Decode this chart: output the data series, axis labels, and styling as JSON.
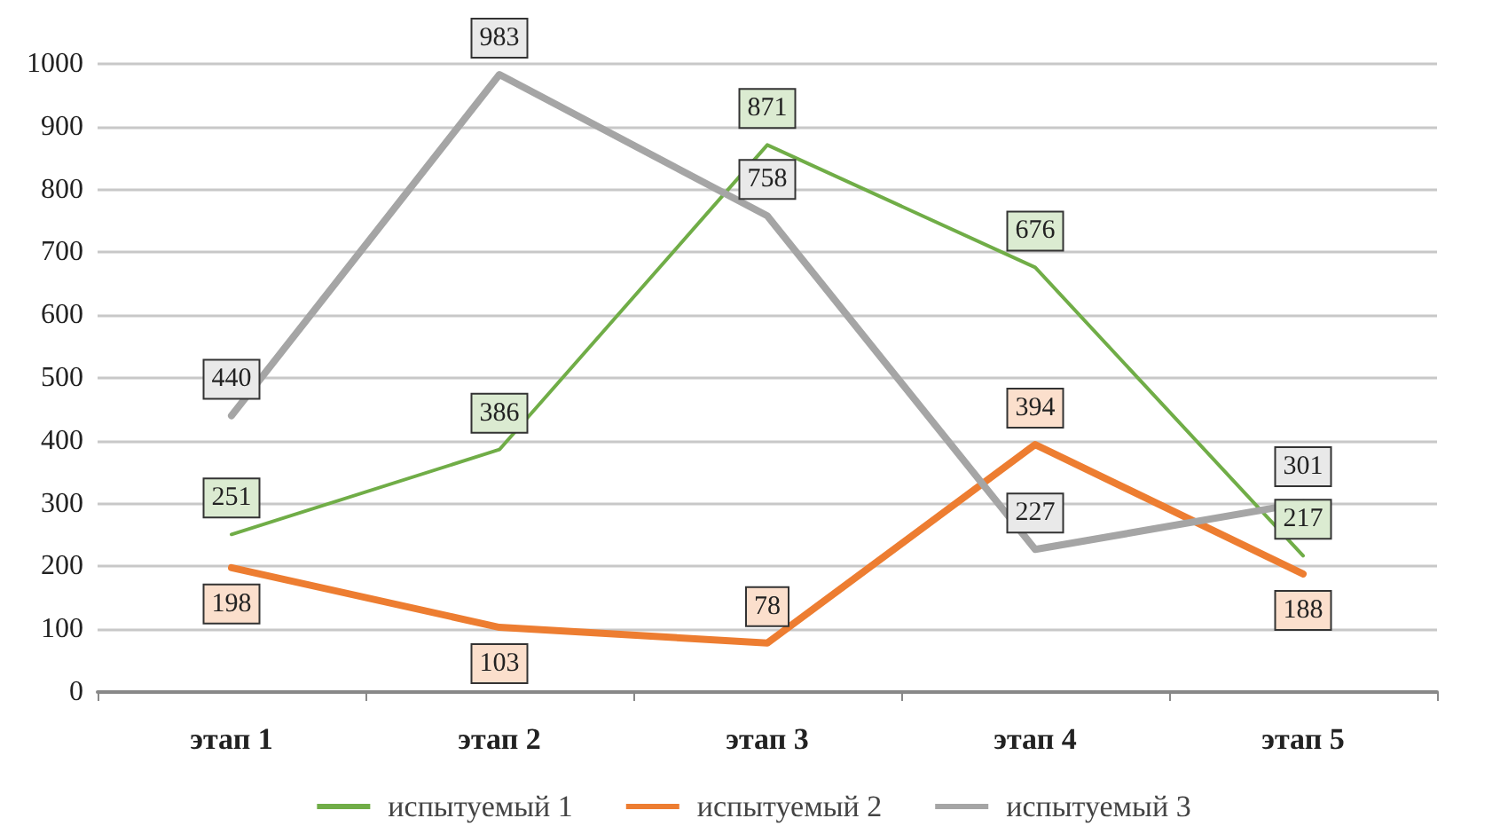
{
  "chart_data": {
    "type": "line",
    "categories": [
      "этап 1",
      "этап 2",
      "этап 3",
      "этап 4",
      "этап 5"
    ],
    "series": [
      {
        "name": "испытуемый 1",
        "color": "#70ad47",
        "values": [
          251,
          386,
          871,
          676,
          217
        ]
      },
      {
        "name": "испытуемый 2",
        "color": "#ed7d31",
        "values": [
          198,
          103,
          78,
          394,
          188
        ]
      },
      {
        "name": "испытуемый 3",
        "color": "#a5a5a5",
        "values": [
          440,
          983,
          758,
          227,
          301
        ]
      }
    ],
    "ylim": [
      0,
      1000
    ],
    "yticks": [
      0,
      100,
      200,
      300,
      400,
      500,
      600,
      700,
      800,
      900,
      1000
    ],
    "grid": "y",
    "legend": "bottom",
    "data_labels": true,
    "marker": "none",
    "line_style": "solid"
  }
}
